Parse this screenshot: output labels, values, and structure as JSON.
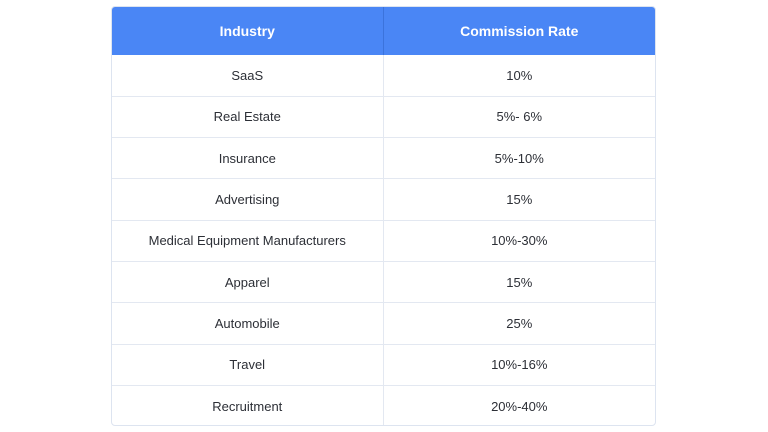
{
  "table": {
    "headers": {
      "industry": "Industry",
      "rate": "Commission Rate"
    },
    "rows": [
      {
        "industry": "SaaS",
        "rate": "10%"
      },
      {
        "industry": "Real Estate",
        "rate": "5%- 6%"
      },
      {
        "industry": "Insurance",
        "rate": "5%-10%"
      },
      {
        "industry": "Advertising",
        "rate": "15%"
      },
      {
        "industry": "Medical Equipment Manufacturers",
        "rate": "10%-30%"
      },
      {
        "industry": "Apparel",
        "rate": "15%"
      },
      {
        "industry": "Automobile",
        "rate": "25%"
      },
      {
        "industry": "Travel",
        "rate": "10%-16%"
      },
      {
        "industry": "Recruitment",
        "rate": "20%-40%"
      }
    ],
    "colors": {
      "header_bg": "#4a86f5",
      "header_text": "#ffffff",
      "border": "#e3e8f1",
      "body_text": "#2c2f36"
    }
  }
}
